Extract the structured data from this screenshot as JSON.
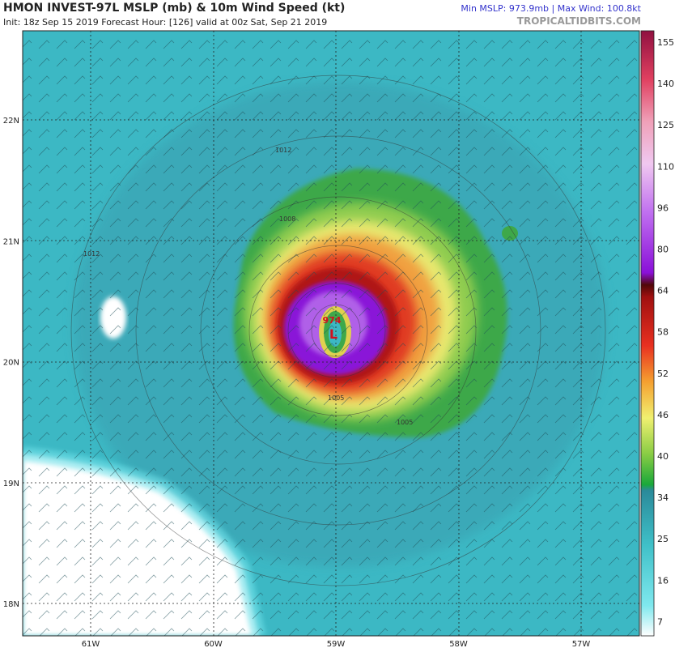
{
  "header": {
    "title": "HMON INVEST-97L MSLP (mb) & 10m Wind Speed (kt)",
    "init": "Init: 18z Sep 15 2019   Forecast Hour: [126]   valid at 00z Sat, Sep 21 2019",
    "stats": "Min MSLP: 973.9mb | Max Wind: 100.8kt",
    "site": "TROPICALTIDBITS.COM"
  },
  "map": {
    "lat_labels": [
      "22N",
      "21N",
      "20N",
      "19N",
      "18N"
    ],
    "lon_labels": [
      "61W",
      "60W",
      "59W",
      "58W",
      "57W"
    ],
    "low_label": "L",
    "min_pressure": "974",
    "isobar_labels": [
      "1012",
      "1008",
      "1012",
      "1005",
      "1005"
    ]
  },
  "colorbar": {
    "ticks": [
      155,
      140,
      125,
      110,
      96,
      80,
      64,
      58,
      52,
      46,
      40,
      34,
      25,
      16,
      7
    ]
  }
}
